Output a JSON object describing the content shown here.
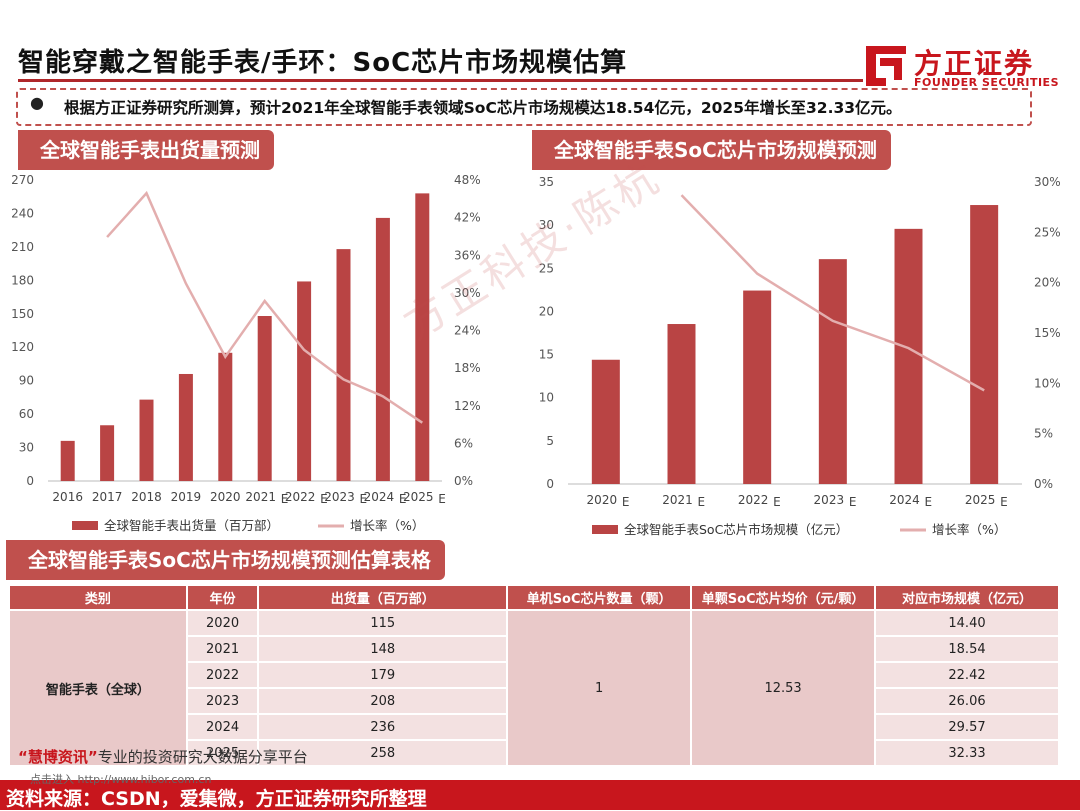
{
  "header": {
    "title": "智能穿戴之智能手表/手环：SoC芯片市场规模估算",
    "logo_cn": "方正证券",
    "logo_en": "FOUNDER SECURITIES"
  },
  "summary": {
    "bullet": "●",
    "text": "根据方正证券研究所测算，预计2021年全球智能手表领域SoC芯片市场规模达18.54亿元，2025年增长至32.33亿元。"
  },
  "watermark": "方正科技·陈杭",
  "chart_data": [
    {
      "type": "bar",
      "title": "全球智能手表出货量预测",
      "categories": [
        "2016",
        "2017",
        "2018",
        "2019",
        "2020",
        "2021E",
        "2022E",
        "2023E",
        "2024E",
        "2025E"
      ],
      "category_labels": [
        "2016",
        "2017",
        "2018",
        "2019",
        "2020",
        "2021",
        "2022",
        "2023",
        "2024",
        "2025"
      ],
      "series": [
        {
          "name": "全球智能手表出货量（百万部）",
          "type": "bar",
          "axis": "left",
          "values": [
            36,
            50,
            73,
            96,
            115,
            148,
            179,
            208,
            236,
            258
          ]
        },
        {
          "name": "增长率（%）",
          "type": "line",
          "axis": "right",
          "values": [
            null,
            38.9,
            45.9,
            31.5,
            19.8,
            28.7,
            20.9,
            16.2,
            13.5,
            9.3
          ]
        }
      ],
      "left_ticks": [
        "0",
        "30",
        "60",
        "90",
        "120",
        "150",
        "180",
        "210",
        "240",
        "270"
      ],
      "right_ticks": [
        "0%",
        "6%",
        "12%",
        "18%",
        "24%",
        "30%",
        "36%",
        "42%",
        "48%"
      ],
      "ylim": [
        0,
        270
      ],
      "y2lim": [
        0,
        48
      ],
      "legend_position": "bottom",
      "colors": {
        "bar": "#b94444",
        "line": "#e3aeae"
      }
    },
    {
      "type": "bar",
      "title": "全球智能手表SoC芯片市场规模预测",
      "categories": [
        "2020E",
        "2021E",
        "2022E",
        "2023E",
        "2024E",
        "2025E"
      ],
      "category_labels": [
        "2020",
        "2021",
        "2022",
        "2023",
        "2024",
        "2025"
      ],
      "series": [
        {
          "name": "全球智能手表SoC芯片市场规模（亿元）",
          "type": "bar",
          "axis": "left",
          "values": [
            14.4,
            18.54,
            22.42,
            26.06,
            29.57,
            32.33
          ]
        },
        {
          "name": "增长率（%）",
          "type": "line",
          "axis": "right",
          "values": [
            null,
            28.7,
            20.9,
            16.2,
            13.5,
            9.3
          ]
        }
      ],
      "left_ticks": [
        "0",
        "5",
        "10",
        "15",
        "20",
        "25",
        "30",
        "35"
      ],
      "right_ticks": [
        "0%",
        "5%",
        "10%",
        "15%",
        "20%",
        "25%",
        "30%"
      ],
      "ylim": [
        0,
        35
      ],
      "y2lim": [
        0,
        30
      ],
      "legend_position": "bottom",
      "colors": {
        "bar": "#b94444",
        "line": "#e3aeae"
      }
    }
  ],
  "table": {
    "title": "全球智能手表SoC芯片市场规模预测估算表格",
    "headers": [
      "类别",
      "年份",
      "出货量（百万部）",
      "单机SoC芯片数量（颗）",
      "单颗SoC芯片均价（元/颗）",
      "对应市场规模（亿元）"
    ],
    "category": "智能手表（全球）",
    "chip_count": "1",
    "avg_price": "12.53",
    "rows": [
      {
        "year": "2020",
        "shipment": "115",
        "market": "14.40"
      },
      {
        "year": "2021",
        "shipment": "148",
        "market": "18.54"
      },
      {
        "year": "2022",
        "shipment": "179",
        "market": "22.42"
      },
      {
        "year": "2023",
        "shipment": "208",
        "market": "26.06"
      },
      {
        "year": "2024",
        "shipment": "236",
        "market": "29.57"
      },
      {
        "year": "2025",
        "shipment": "258",
        "market": "32.33"
      }
    ]
  },
  "footer": {
    "huibo_brand": "“慧博资讯”",
    "huibo_text": "专业的投资研究大数据分享平台",
    "huibo_sub": "点击进入 http://www.hibor.com.cn",
    "source": "资料来源：CSDN，爱集微，方正证券研究所整理"
  }
}
